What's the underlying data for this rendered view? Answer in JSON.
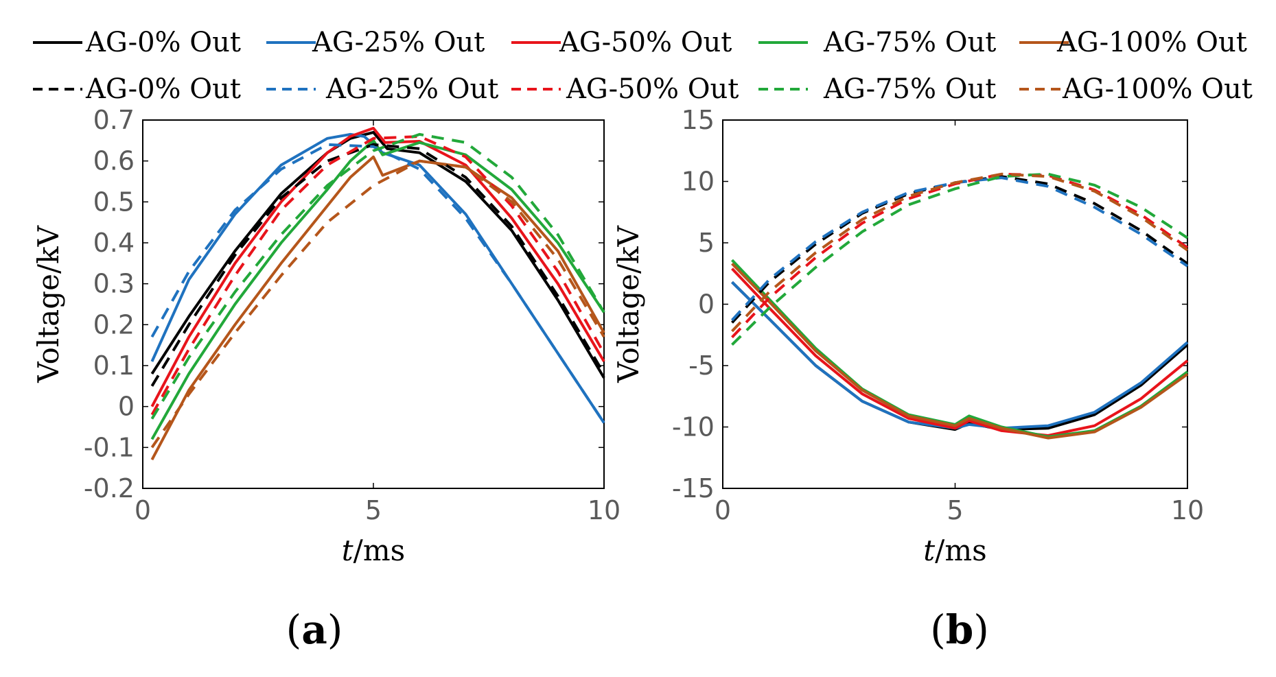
{
  "legend": {
    "items": [
      {
        "label": "AG-0% Out",
        "series": "ag0",
        "style": "solid"
      },
      {
        "label": "AG-25% Out",
        "series": "ag25",
        "style": "solid"
      },
      {
        "label": "AG-50% Out",
        "series": "ag50",
        "style": "solid"
      },
      {
        "label": "AG-75% Out",
        "series": "ag75",
        "style": "solid"
      },
      {
        "label": "AG-100% Out",
        "series": "ag100",
        "style": "solid"
      },
      {
        "label": "AG-0% Out",
        "series": "ag0",
        "style": "dashed"
      },
      {
        "label": "AG-25% Out",
        "series": "ag25",
        "style": "dashed"
      },
      {
        "label": "AG-50% Out",
        "series": "ag50",
        "style": "dashed"
      },
      {
        "label": "AG-75% Out",
        "series": "ag75",
        "style": "dashed"
      },
      {
        "label": "AG-100% Out",
        "series": "ag100",
        "style": "dashed"
      }
    ]
  },
  "colors": {
    "ag0": "#000000",
    "ag25": "#1f72bf",
    "ag50": "#e8141b",
    "ag75": "#22a83a",
    "ag100": "#b5561b"
  },
  "chart_data": [
    {
      "type": "line",
      "panel_label": "a",
      "xlabel_italic": "t",
      "xlabel_rest": "/ms",
      "ylabel": "Voltage/kV",
      "xlim": [
        0,
        10
      ],
      "ylim": [
        -0.2,
        0.7
      ],
      "xticks": [
        0,
        5,
        10
      ],
      "yticks": [
        -0.2,
        -0.1,
        0,
        0.1,
        0.2,
        0.3,
        0.4,
        0.5,
        0.6,
        0.7
      ],
      "ytick_labels": [
        "-0.2",
        "-0.1",
        "0",
        "0.1",
        "0.2",
        "0.3",
        "0.4",
        "0.5",
        "0.6",
        "0.7"
      ],
      "xtick_labels": [
        "0",
        "5",
        "10"
      ],
      "series": [
        {
          "name": "AG-0% Out",
          "color_key": "ag0",
          "style": "solid",
          "x": [
            0.2,
            1,
            2,
            3,
            4,
            4.5,
            5,
            5.3,
            6,
            7,
            8,
            9,
            10
          ],
          "y": [
            0.08,
            0.22,
            0.38,
            0.52,
            0.62,
            0.655,
            0.67,
            0.63,
            0.62,
            0.55,
            0.43,
            0.26,
            0.07
          ]
        },
        {
          "name": "AG-25% Out",
          "color_key": "ag25",
          "style": "solid",
          "x": [
            0.2,
            1,
            2,
            3,
            4,
            4.5,
            4.8,
            5.2,
            6,
            7,
            8,
            9,
            10
          ],
          "y": [
            0.11,
            0.31,
            0.47,
            0.59,
            0.655,
            0.665,
            0.66,
            0.62,
            0.59,
            0.47,
            0.3,
            0.13,
            -0.04
          ]
        },
        {
          "name": "AG-50% Out",
          "color_key": "ag50",
          "style": "solid",
          "x": [
            0.2,
            1,
            2,
            3,
            4,
            4.5,
            5,
            5.25,
            6,
            7,
            8,
            9,
            10
          ],
          "y": [
            0.0,
            0.17,
            0.35,
            0.5,
            0.62,
            0.66,
            0.68,
            0.645,
            0.648,
            0.59,
            0.46,
            0.3,
            0.11
          ]
        },
        {
          "name": "AG-75% Out",
          "color_key": "ag75",
          "style": "solid",
          "x": [
            0.2,
            1,
            2,
            3,
            4,
            4.5,
            5,
            5.2,
            6,
            7,
            8,
            9,
            10
          ],
          "y": [
            -0.08,
            0.08,
            0.25,
            0.4,
            0.53,
            0.6,
            0.65,
            0.615,
            0.645,
            0.615,
            0.53,
            0.4,
            0.23
          ]
        },
        {
          "name": "AG-100% Out",
          "color_key": "ag100",
          "style": "solid",
          "x": [
            0.2,
            1,
            2,
            3,
            4,
            4.5,
            5,
            5.2,
            6,
            7,
            8,
            9,
            10
          ],
          "y": [
            -0.13,
            0.04,
            0.2,
            0.35,
            0.49,
            0.56,
            0.61,
            0.565,
            0.6,
            0.585,
            0.51,
            0.38,
            0.18
          ]
        },
        {
          "name": "AG-0% Out",
          "color_key": "ag0",
          "style": "dashed",
          "x": [
            0.2,
            1,
            2,
            3,
            4,
            5,
            6,
            7,
            8,
            9,
            10
          ],
          "y": [
            0.05,
            0.2,
            0.37,
            0.51,
            0.6,
            0.64,
            0.63,
            0.56,
            0.44,
            0.27,
            0.08
          ]
        },
        {
          "name": "AG-25% Out",
          "color_key": "ag25",
          "style": "dashed",
          "x": [
            0.2,
            1,
            2,
            3,
            4,
            5,
            6,
            7,
            8,
            9,
            10
          ],
          "y": [
            0.17,
            0.33,
            0.48,
            0.58,
            0.64,
            0.635,
            0.58,
            0.46,
            0.3,
            0.13,
            -0.04
          ]
        },
        {
          "name": "AG-50% Out",
          "color_key": "ag50",
          "style": "dashed",
          "x": [
            0.2,
            1,
            2,
            3,
            4,
            5,
            6,
            7,
            8,
            9,
            10
          ],
          "y": [
            -0.02,
            0.14,
            0.32,
            0.48,
            0.59,
            0.655,
            0.66,
            0.61,
            0.49,
            0.33,
            0.13
          ]
        },
        {
          "name": "AG-75% Out",
          "color_key": "ag75",
          "style": "dashed",
          "x": [
            0.2,
            1,
            2,
            3,
            4,
            5,
            6,
            7,
            8,
            9,
            10
          ],
          "y": [
            -0.03,
            0.12,
            0.28,
            0.42,
            0.54,
            0.625,
            0.665,
            0.645,
            0.56,
            0.42,
            0.23
          ]
        },
        {
          "name": "AG-100% Out",
          "color_key": "ag100",
          "style": "dashed",
          "x": [
            0.2,
            1,
            2,
            3,
            4,
            5,
            6,
            7,
            8,
            9,
            10
          ],
          "y": [
            -0.1,
            0.03,
            0.18,
            0.32,
            0.45,
            0.54,
            0.6,
            0.585,
            0.5,
            0.36,
            0.17
          ]
        }
      ]
    },
    {
      "type": "line",
      "panel_label": "b",
      "xlabel_italic": "t",
      "xlabel_rest": "/ms",
      "ylabel": "Voltage/kV",
      "xlim": [
        0,
        10
      ],
      "ylim": [
        -15,
        15
      ],
      "xticks": [
        0,
        5,
        10
      ],
      "yticks": [
        -15,
        -10,
        -5,
        0,
        5,
        10,
        15
      ],
      "ytick_labels": [
        "-15",
        "-10",
        "-5",
        "0",
        "5",
        "10",
        "15"
      ],
      "xtick_labels": [
        "0",
        "5",
        "10"
      ],
      "series": [
        {
          "name": "AG-0% Out",
          "color_key": "ag0",
          "style": "solid",
          "x": [
            0.2,
            1,
            2,
            3,
            4,
            5,
            5.3,
            6,
            7,
            8,
            9,
            10
          ],
          "y": [
            1.8,
            -1.2,
            -5,
            -7.9,
            -9.6,
            -10.2,
            -9.7,
            -10.2,
            -10.1,
            -9.0,
            -6.6,
            -3.3
          ]
        },
        {
          "name": "AG-25% Out",
          "color_key": "ag25",
          "style": "solid",
          "x": [
            0.2,
            1,
            2,
            3,
            4,
            5,
            5.3,
            6,
            7,
            8,
            9,
            10
          ],
          "y": [
            1.8,
            -1.2,
            -5,
            -7.9,
            -9.6,
            -10.1,
            -9.8,
            -10.1,
            -9.9,
            -8.8,
            -6.4,
            -3.1
          ]
        },
        {
          "name": "AG-50% Out",
          "color_key": "ag50",
          "style": "solid",
          "x": [
            0.2,
            1,
            2,
            3,
            4,
            5,
            5.3,
            6,
            7,
            8,
            9,
            10
          ],
          "y": [
            2.9,
            -0.3,
            -4.2,
            -7.3,
            -9.3,
            -10.1,
            -9.5,
            -10.3,
            -10.7,
            -9.9,
            -7.7,
            -4.6
          ]
        },
        {
          "name": "AG-75% Out",
          "color_key": "ag75",
          "style": "solid",
          "x": [
            0.2,
            1,
            2,
            3,
            4,
            5,
            5.3,
            6,
            7,
            8,
            9,
            10
          ],
          "y": [
            3.6,
            0.4,
            -3.6,
            -6.9,
            -9.0,
            -9.8,
            -9.1,
            -10.0,
            -10.8,
            -10.3,
            -8.3,
            -5.5
          ]
        },
        {
          "name": "AG-100% Out",
          "color_key": "ag100",
          "style": "solid",
          "x": [
            0.2,
            1,
            2,
            3,
            4,
            5,
            5.3,
            6,
            7,
            8,
            9,
            10
          ],
          "y": [
            3.3,
            0.2,
            -3.8,
            -7.0,
            -9.1,
            -9.9,
            -9.3,
            -10.1,
            -10.9,
            -10.4,
            -8.4,
            -5.7
          ]
        },
        {
          "name": "AG-0% Out",
          "color_key": "ag0",
          "style": "dashed",
          "x": [
            0.2,
            1,
            2,
            3,
            4,
            5,
            6,
            7,
            8,
            9,
            10
          ],
          "y": [
            -1.5,
            1.8,
            4.9,
            7.4,
            9.0,
            9.9,
            10.4,
            9.8,
            8.2,
            6.0,
            3.3
          ]
        },
        {
          "name": "AG-25% Out",
          "color_key": "ag25",
          "style": "dashed",
          "x": [
            0.2,
            1,
            2,
            3,
            4,
            5,
            6,
            7,
            8,
            9,
            10
          ],
          "y": [
            -1.3,
            2.0,
            5.1,
            7.5,
            9.1,
            9.9,
            10.3,
            9.6,
            7.9,
            5.7,
            3.1
          ]
        },
        {
          "name": "AG-50% Out",
          "color_key": "ag50",
          "style": "dashed",
          "x": [
            0.2,
            1,
            2,
            3,
            4,
            5,
            6,
            7,
            8,
            9,
            10
          ],
          "y": [
            -2.7,
            0.5,
            3.8,
            6.6,
            8.6,
            9.8,
            10.6,
            10.5,
            9.3,
            7.3,
            4.6
          ]
        },
        {
          "name": "AG-75% Out",
          "color_key": "ag75",
          "style": "dashed",
          "x": [
            0.2,
            1,
            2,
            3,
            4,
            5,
            6,
            7,
            8,
            9,
            10
          ],
          "y": [
            -3.3,
            -0.3,
            3.0,
            5.9,
            8.1,
            9.4,
            10.4,
            10.6,
            9.7,
            7.9,
            5.4
          ]
        },
        {
          "name": "AG-100% Out",
          "color_key": "ag100",
          "style": "dashed",
          "x": [
            0.2,
            1,
            2,
            3,
            4,
            5,
            6,
            7,
            8,
            9,
            10
          ],
          "y": [
            -2.2,
            1.0,
            4.2,
            6.9,
            8.8,
            9.9,
            10.6,
            10.4,
            9.2,
            7.1,
            4.4
          ]
        }
      ]
    }
  ]
}
